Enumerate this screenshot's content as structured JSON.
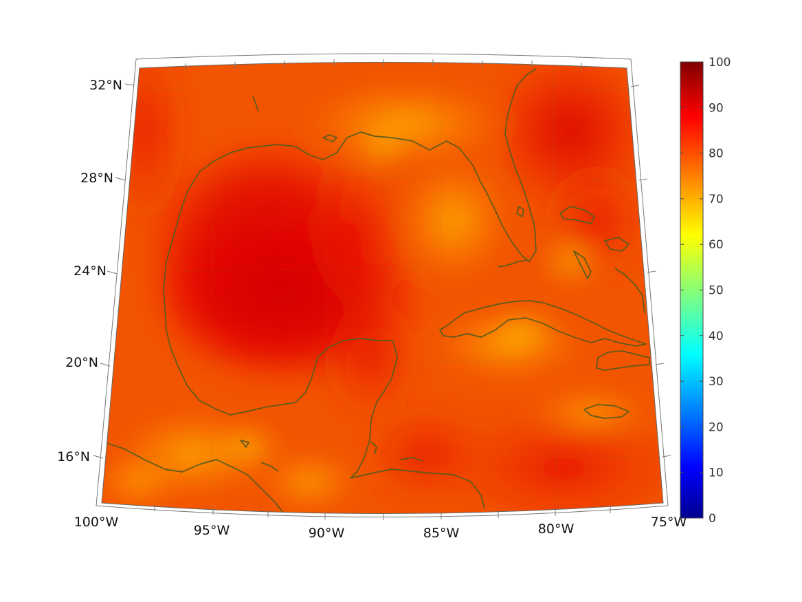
{
  "map": {
    "region": "Gulf of Mexico / Caribbean",
    "projection": "conic",
    "lon_range": [
      -100,
      -75
    ],
    "lat_range": [
      14,
      33
    ],
    "grid": true,
    "lon_ticks": [
      "100°W",
      "95°W",
      "90°W",
      "85°W",
      "80°W",
      "75°W"
    ],
    "lat_ticks": [
      "32°N",
      "28°N",
      "24°N",
      "20°N",
      "16°N"
    ],
    "field_description": "gridded scalar field, mostly 75–92 (reds over Gulf and Atlantic, oranges/yellows over land and Caribbean)",
    "coastline_color": "#5b5a1e"
  },
  "colorbar": {
    "colormap": "jet",
    "min": 0,
    "max": 100,
    "tick_labels": [
      "100",
      "90",
      "80",
      "70",
      "60",
      "50",
      "40",
      "30",
      "20",
      "10",
      "0"
    ],
    "placement": "right"
  }
}
